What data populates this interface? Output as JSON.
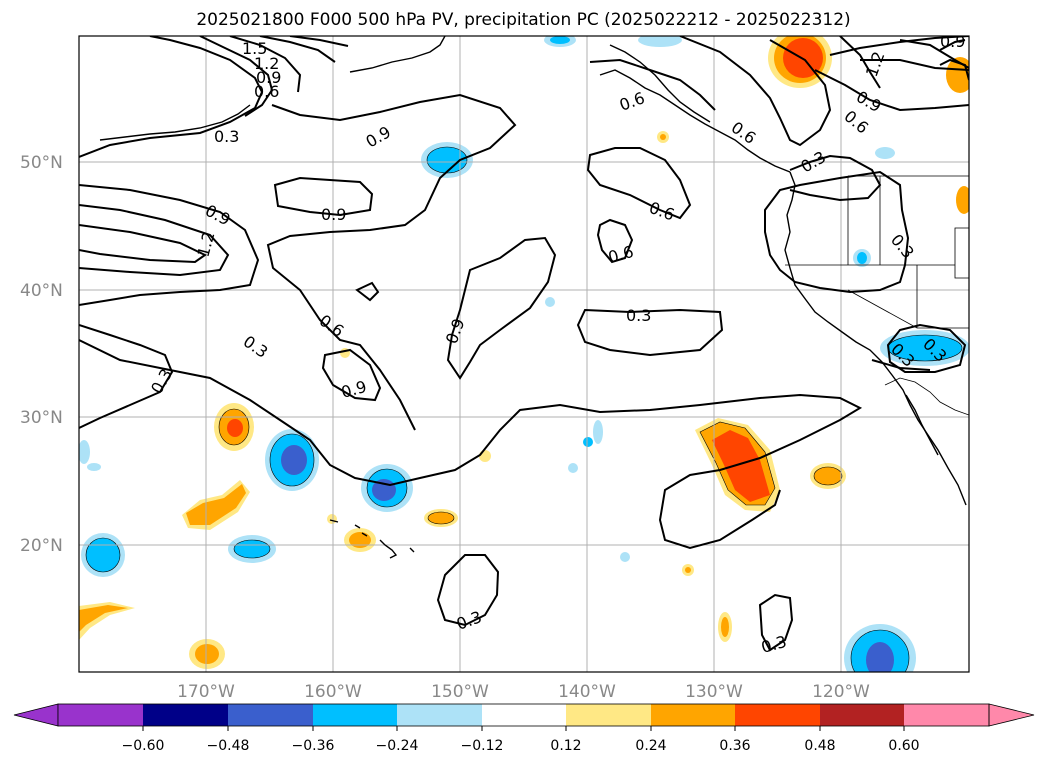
{
  "title": "2025021800 F000 500 hPa PV, precipitation PC (2025022212 - 2025022312)",
  "lat_ticks": [
    "50°N",
    "40°N",
    "30°N",
    "20°N"
  ],
  "lon_ticks": [
    "170°W",
    "160°W",
    "150°W",
    "140°W",
    "130°W",
    "120°W"
  ],
  "colorbar": {
    "tick_labels": [
      "−0.60",
      "−0.48",
      "−0.36",
      "−0.24",
      "−0.12",
      "0.12",
      "0.24",
      "0.36",
      "0.48",
      "0.60"
    ],
    "colors": [
      "#9933cc",
      "#000088",
      "#3a5fcd",
      "#00bfff",
      "#ade2f7",
      "#ffffff",
      "#ffe885",
      "#ffa500",
      "#ff4500",
      "#b22222",
      "#ff88aa"
    ]
  },
  "contour_labels": [
    "1.5",
    "1.2",
    "0.9",
    "0.6",
    "0.3",
    "0.9",
    "0.9",
    "0.9",
    "1.2",
    "0.9",
    "0.6",
    "0.3",
    "0.3",
    "0.9",
    "0.3",
    "0.6",
    "0.6",
    "0.6",
    "0.3",
    "0.3",
    "0.3",
    "0.6",
    "0.9",
    "1.2",
    "0.6",
    "0.3",
    "0.3",
    "0.3",
    "0.9"
  ],
  "chart_data": {
    "type": "map",
    "title": "2025021800 F000 500 hPa PV, precipitation PC (2025022212 - 2025022312)",
    "lon_range": [
      -180,
      -110
    ],
    "lat_range": [
      10,
      60
    ],
    "grid": true,
    "contour_field": "500 hPa PV",
    "contour_levels": [
      0.3,
      0.6,
      0.9,
      1.2,
      1.5
    ],
    "shaded_field": "precipitation PC",
    "colorbar_levels": [
      -0.6,
      -0.48,
      -0.36,
      -0.24,
      -0.12,
      0.12,
      0.24,
      0.36,
      0.48,
      0.6
    ]
  }
}
